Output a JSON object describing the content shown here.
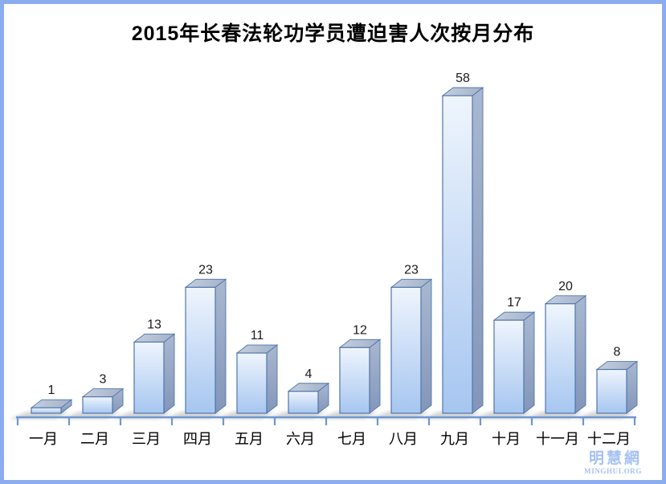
{
  "frame": {
    "border_color": "#8badf0"
  },
  "watermark": {
    "name": "明慧網",
    "url": "MINGHUI.ORG",
    "color": "#a6c2f3"
  },
  "chart_data": {
    "type": "bar",
    "title": "2015年长春法轮功学员遭迫害人次按月分布",
    "categories": [
      "一月",
      "二月",
      "三月",
      "四月",
      "五月",
      "六月",
      "七月",
      "八月",
      "九月",
      "十月",
      "十一月",
      "十二月"
    ],
    "values": [
      1,
      3,
      13,
      23,
      11,
      4,
      12,
      23,
      58,
      17,
      20,
      8
    ],
    "xlabel": "",
    "ylabel": "",
    "ylim": [
      0,
      60
    ],
    "grid": false,
    "legend": "none",
    "data_labels": true,
    "bar_3d": true,
    "colors": {
      "bar_front_top": "#eff5fd",
      "bar_front_bottom": "#a6c6f0",
      "bar_top_light": "#c5cfdf",
      "bar_top_dark": "#a3b1c8",
      "bar_side_light": "#a9b8d0",
      "bar_side_dark": "#8396ba",
      "bar_border": "#4f76ab",
      "axis": "#6f97cf",
      "shadow": "#8f8f8f",
      "value_label": "#1a1a1a",
      "category_label": "#000000"
    }
  }
}
